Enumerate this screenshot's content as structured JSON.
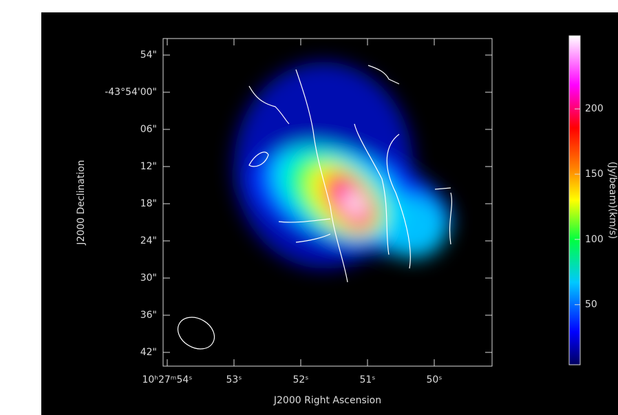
{
  "plot": {
    "x_axis": {
      "label": "J2000 Right Ascension",
      "ticks": [
        "10ʰ27ᵐ54ˢ",
        "53ˢ",
        "52ˢ",
        "51ˢ",
        "50ˢ"
      ]
    },
    "y_axis": {
      "label": "J2000 Declination",
      "ticks": [
        "54\"",
        "-43°54'00\"",
        "06\"",
        "12\"",
        "18\"",
        "24\"",
        "30\"",
        "36\"",
        "42\""
      ]
    }
  },
  "colorbar": {
    "label": "(Jy/beam)(km/s)",
    "lim": [
      4,
      256
    ],
    "ticks": [
      50,
      100,
      150,
      200
    ]
  }
}
